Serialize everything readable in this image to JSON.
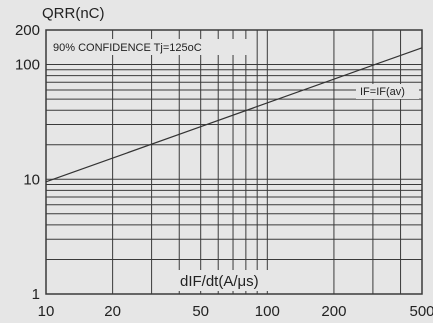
{
  "chart_data": {
    "type": "line",
    "title": "",
    "ylabel": "QRR(nC)",
    "xlabel": "dIF/dt(A/μs)",
    "x_scale": "log",
    "y_scale": "log",
    "xlim": [
      10,
      500
    ],
    "ylim": [
      1,
      200
    ],
    "x_ticks": [
      10,
      20,
      50,
      100,
      200,
      500
    ],
    "x_tick_labels": [
      "10",
      "20",
      "50",
      "100",
      "200",
      "500"
    ],
    "y_ticks": [
      1,
      10,
      100,
      200
    ],
    "y_tick_labels": [
      "1",
      "10",
      "100",
      "200"
    ],
    "grid": true,
    "annotations": [
      "90% CONFIDENCE Tj=125oC",
      "IF=IF(av)"
    ],
    "series": [
      {
        "name": "IF=IF(av)",
        "x": [
          10,
          500
        ],
        "y": [
          9.5,
          140
        ]
      }
    ]
  },
  "colors": {
    "background": "#e6e6e6",
    "grid": "#3a3a3a",
    "line": "#333333",
    "text": "#222222"
  }
}
